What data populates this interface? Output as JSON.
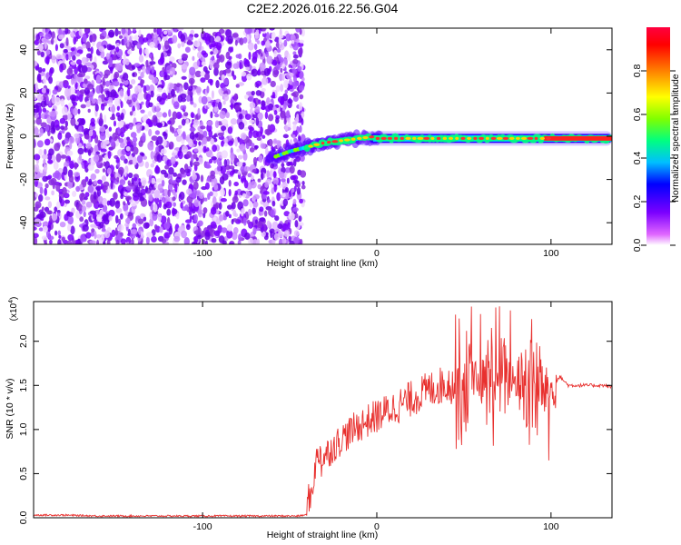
{
  "title": "C2E2.2026.016.22.56.G04",
  "chart_data": [
    {
      "type": "heatmap",
      "xlabel": "Height of straight line (km)",
      "ylabel": "Frequency (Hz)",
      "xlim": [
        -197,
        135
      ],
      "ylim": [
        -50,
        50
      ],
      "xticks": [
        -100,
        0,
        100
      ],
      "xtick_labels": [
        "-100",
        "0",
        "100"
      ],
      "yticks": [
        -40,
        -20,
        0,
        20,
        40
      ],
      "ytick_labels": [
        "-40",
        "-20",
        "0",
        "20",
        "40"
      ],
      "grid": false,
      "colorbar": {
        "label": "Normalized spectral amplitude",
        "range": [
          0,
          1
        ],
        "ticks": [
          0,
          0.2,
          0.4,
          0.6,
          0.8
        ],
        "tick_labels": [
          "0.0",
          "0.2",
          "0.4",
          "0.6",
          "0.8"
        ],
        "colors": [
          "#ffffff",
          "#e066ff",
          "#7b00ff",
          "#0000ff",
          "#00bfff",
          "#00ff80",
          "#80ff00",
          "#ffff00",
          "#ff8000",
          "#ff0000",
          "#ff0040"
        ]
      },
      "features": [
        {
          "name": "noise",
          "x_range": [
            -197,
            -48
          ],
          "y_range": [
            -50,
            50
          ],
          "amplitude": 0.15
        },
        {
          "name": "signal-transition",
          "x": [
            -60,
            -50,
            -40,
            -30,
            -20,
            -10,
            0
          ],
          "y": [
            -10,
            -7,
            -5,
            -3,
            -2,
            -1,
            0
          ]
        },
        {
          "name": "signal-track",
          "x": [
            0,
            135
          ],
          "y": [
            -1,
            -1
          ],
          "amplitude": 0.95
        }
      ]
    },
    {
      "type": "line",
      "xlabel": "Height of straight line (km)",
      "ylabel": "SNR (10 * v/v)",
      "y_multiplier_label": "(x10",
      "y_multiplier_exp": "4",
      "y_multiplier_close": ")",
      "xlim": [
        -197,
        135
      ],
      "ylim": [
        0,
        2.45
      ],
      "xticks": [
        -100,
        0,
        100
      ],
      "xtick_labels": [
        "-100",
        "0",
        "100"
      ],
      "yticks": [
        0,
        0.5,
        1.0,
        1.5,
        2.0
      ],
      "ytick_labels": [
        "0.0",
        "0.5",
        "1.0",
        "1.5",
        "2.0"
      ],
      "grid": false,
      "color": "#e8302e",
      "series": [
        {
          "x": [
            -197,
            -180,
            -160,
            -140,
            -120,
            -100,
            -80,
            -60,
            -45,
            -38,
            -35,
            -32,
            -30,
            -25,
            -20,
            -10,
            0,
            10,
            20,
            30,
            40,
            45,
            50,
            55,
            60,
            65,
            70,
            75,
            80,
            85,
            90,
            95,
            100,
            103,
            105,
            110,
            120,
            130,
            135
          ],
          "y": [
            0.03,
            0.03,
            0.02,
            0.02,
            0.02,
            0.02,
            0.02,
            0.02,
            0.02,
            0.04,
            0.45,
            0.6,
            0.7,
            0.8,
            0.9,
            1.05,
            1.15,
            1.25,
            1.35,
            1.45,
            1.52,
            1.5,
            1.55,
            1.6,
            1.5,
            1.55,
            1.6,
            1.55,
            1.55,
            1.5,
            1.5,
            1.45,
            1.45,
            1.55,
            1.6,
            1.5,
            1.5,
            1.5,
            1.48
          ]
        }
      ]
    }
  ]
}
